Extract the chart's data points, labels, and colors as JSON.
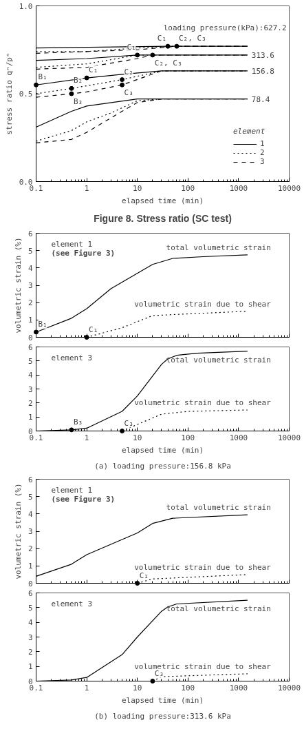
{
  "chart_data": [
    {
      "type": "line",
      "title": "Figure 8. Stress ratio (SC test)",
      "xlabel": "elapsed time (min)",
      "ylabel": "stress ratio qⁿ/pⁿ",
      "legend_title": "element",
      "legend": "bottom right",
      "log": "x",
      "xlim": [
        0.1,
        10000
      ],
      "xticks": [
        0.1,
        1,
        10,
        100,
        1000,
        10000
      ],
      "ylim": [
        0,
        1.0
      ],
      "yticks": [
        {
          "value": 0,
          "label": "0.0"
        },
        {
          "value": 0.5,
          "label": "0.5"
        },
        {
          "value": 1.0,
          "label": "1.0"
        }
      ],
      "series": [
        {
          "name": "1",
          "color": "#000000",
          "line_style": "solid",
          "x": [
            0.1,
            40,
            1500
          ],
          "values": [
            0.76,
            0.77,
            0.77
          ]
        },
        {
          "name": "2",
          "color": "#000000",
          "line_style": "dotted",
          "x": [
            0.1,
            1,
            10,
            60,
            1500
          ],
          "values": [
            0.74,
            0.74,
            0.76,
            0.77,
            0.77
          ]
        },
        {
          "name": "3",
          "color": "#000000",
          "line_style": "dashed",
          "x": [
            0.1,
            1,
            10,
            60,
            1500
          ],
          "values": [
            0.73,
            0.74,
            0.75,
            0.77,
            0.77
          ]
        },
        {
          "color": "#000000",
          "line_style": "solid",
          "x": [
            0.1,
            1,
            10,
            1500
          ],
          "values": [
            0.69,
            0.7,
            0.72,
            0.72
          ]
        },
        {
          "color": "#000000",
          "line_style": "dotted",
          "x": [
            0.1,
            1,
            10,
            20,
            1500
          ],
          "values": [
            0.65,
            0.67,
            0.72,
            0.72,
            0.72
          ]
        },
        {
          "color": "#000000",
          "line_style": "dashed",
          "x": [
            0.1,
            1,
            10,
            20,
            1500
          ],
          "values": [
            0.64,
            0.65,
            0.7,
            0.72,
            0.72
          ]
        },
        {
          "color": "#000000",
          "line_style": "solid",
          "x": [
            0.1,
            1,
            5,
            30,
            1500
          ],
          "values": [
            0.55,
            0.59,
            0.61,
            0.63,
            0.63
          ]
        },
        {
          "color": "#000000",
          "line_style": "dotted",
          "x": [
            0.1,
            0.5,
            5,
            30,
            1500
          ],
          "values": [
            0.5,
            0.53,
            0.58,
            0.63,
            0.63
          ]
        },
        {
          "color": "#000000",
          "line_style": "dashed",
          "x": [
            0.1,
            0.5,
            1,
            5,
            30,
            1500
          ],
          "values": [
            0.48,
            0.5,
            0.51,
            0.55,
            0.63,
            0.63
          ]
        },
        {
          "color": "#000000",
          "line_style": "solid",
          "x": [
            0.1,
            0.5,
            1,
            10,
            30,
            1500
          ],
          "values": [
            0.31,
            0.4,
            0.43,
            0.47,
            0.47,
            0.47
          ]
        },
        {
          "color": "#000000",
          "line_style": "dotted",
          "x": [
            0.1,
            0.5,
            1,
            3,
            10,
            30,
            1500
          ],
          "values": [
            0.23,
            0.29,
            0.34,
            0.39,
            0.46,
            0.47,
            0.47
          ]
        },
        {
          "color": "#000000",
          "line_style": "dashed",
          "x": [
            0.1,
            0.5,
            1,
            5,
            10,
            30,
            1500
          ],
          "values": [
            0.22,
            0.24,
            0.28,
            0.4,
            0.45,
            0.47,
            0.47
          ]
        },
        {
          "type": "scatter",
          "marker": "circle",
          "color": "#000000",
          "x": [
            40,
            60,
            10,
            20,
            0.1,
            0.5,
            0.5,
            1,
            5,
            5
          ],
          "values": [
            0.77,
            0.77,
            0.72,
            0.72,
            0.55,
            0.53,
            0.5,
            0.59,
            0.58,
            0.55
          ]
        }
      ],
      "annotations": [
        {
          "text": "loading pressure(kPa):627.2",
          "x": 1500,
          "y": 0.77
        },
        {
          "text": "C₁",
          "x": 40,
          "y": 0.77
        },
        {
          "text": "C₂, C₃",
          "x": 60,
          "y": 0.77
        },
        {
          "text": "313.6",
          "x": 1500,
          "y": 0.72
        },
        {
          "text": "C₁",
          "x": 10,
          "y": 0.72
        },
        {
          "text": "C₂, C₃",
          "x": 20,
          "y": 0.72
        },
        {
          "text": "156.8",
          "x": 1500,
          "y": 0.63
        },
        {
          "text": "B₁",
          "x": 0.1,
          "y": 0.55
        },
        {
          "text": "B₂",
          "x": 0.5,
          "y": 0.53
        },
        {
          "text": "C₁",
          "x": 1,
          "y": 0.59
        },
        {
          "text": "C₂",
          "x": 5,
          "y": 0.58
        },
        {
          "text": "B₃",
          "x": 0.5,
          "y": 0.5
        },
        {
          "text": "C₃",
          "x": 5,
          "y": 0.55
        },
        {
          "text": "78.4",
          "x": 1500,
          "y": 0.47
        }
      ]
    },
    {
      "type": "line",
      "ylabel": "volumetric strain (%)",
      "log": "x",
      "tick_labels": "y",
      "xlim": [
        0.1,
        10000
      ],
      "xticks": [
        0.1,
        1,
        10,
        100,
        1000,
        10000
      ],
      "ylim": [
        0,
        6
      ],
      "yticks": [
        0,
        1,
        2,
        3,
        4,
        5,
        6
      ],
      "series": [
        {
          "name": "total volumetric strain",
          "color": "#000000",
          "line_style": "solid",
          "x": [
            0.1,
            0.5,
            1,
            3,
            20,
            50,
            200,
            1500
          ],
          "values": [
            0.3,
            1.1,
            1.65,
            2.8,
            4.2,
            4.55,
            4.65,
            4.75
          ]
        },
        {
          "name": "volumetric strain due to shear",
          "color": "#000000",
          "line_style": "dotted",
          "x": [
            1,
            5,
            20,
            100,
            1500
          ],
          "values": [
            0,
            0.55,
            1.25,
            1.35,
            1.5
          ]
        },
        {
          "type": "scatter",
          "marker": "circle",
          "color": "#000000",
          "x": [
            0.1,
            1
          ],
          "values": [
            0.3,
            0
          ]
        }
      ],
      "annotations": [
        "element 1",
        "(see Figure 3)",
        {
          "text": "B₁",
          "x": 0.1,
          "y": 0.3
        },
        {
          "text": "C₁",
          "x": 1,
          "y": 0
        }
      ]
    },
    {
      "type": "line",
      "title": "(a) loading pressure:156.8 kPa",
      "xlabel": "elapsed time (min)",
      "log": "x",
      "xlim": [
        0.1,
        10000
      ],
      "xticks": [
        0.1,
        1,
        10,
        100,
        1000,
        10000
      ],
      "ylim": [
        0,
        6
      ],
      "yticks": [
        0,
        1,
        2,
        3,
        4,
        5,
        6
      ],
      "series": [
        {
          "name": "total volumetric strain",
          "color": "#000000",
          "line_style": "solid",
          "x": [
            0.1,
            0.5,
            1,
            5,
            10,
            30,
            40,
            60,
            150,
            1500
          ],
          "values": [
            0,
            0.08,
            0.2,
            1.4,
            2.5,
            4.75,
            5.15,
            5.4,
            5.55,
            5.7
          ]
        },
        {
          "name": "volumetric strain due to shear",
          "color": "#000000",
          "line_style": "dotted",
          "x": [
            5,
            30,
            100,
            1500
          ],
          "values": [
            0,
            1.2,
            1.4,
            1.5
          ]
        },
        {
          "type": "scatter",
          "marker": "circle",
          "color": "#000000",
          "x": [
            0.5,
            5
          ],
          "values": [
            0.08,
            0
          ]
        }
      ],
      "annotations": [
        "element 3",
        {
          "text": "B₃",
          "x": 0.5,
          "y": 0.08
        },
        {
          "text": "C₃",
          "x": 5,
          "y": 0
        }
      ]
    },
    {
      "type": "line",
      "ylabel": "volumetric strain (%)",
      "log": "x",
      "tick_labels": "y",
      "xlim": [
        0.1,
        10000
      ],
      "xticks": [
        0.1,
        1,
        10,
        100,
        1000,
        10000
      ],
      "ylim": [
        0,
        6
      ],
      "yticks": [
        0,
        1,
        2,
        3,
        4,
        5,
        6
      ],
      "series": [
        {
          "name": "total volumetric strain",
          "color": "#000000",
          "line_style": "solid",
          "x": [
            0.1,
            0.5,
            1,
            10,
            20,
            50,
            1500
          ],
          "values": [
            0.4,
            1.1,
            1.65,
            2.9,
            3.45,
            3.75,
            3.95
          ]
        },
        {
          "name": "volumetric strain due to shear",
          "color": "#000000",
          "line_style": "dotted",
          "x": [
            10,
            20,
            1500
          ],
          "values": [
            0,
            0.25,
            0.5
          ]
        },
        {
          "type": "scatter",
          "marker": "circle",
          "color": "#000000",
          "x": [
            10
          ],
          "values": [
            0
          ]
        }
      ],
      "annotations": [
        "element 1",
        "(see Figure 3)",
        {
          "text": "C₁",
          "x": 10,
          "y": 0
        }
      ]
    },
    {
      "type": "line",
      "title": "(b) loading pressure:313.6 kPa",
      "xlabel": "elapsed time (min)",
      "log": "x",
      "xlim": [
        0.1,
        10000
      ],
      "xticks": [
        0.1,
        1,
        10,
        100,
        1000,
        10000
      ],
      "ylim": [
        0,
        6
      ],
      "yticks": [
        0,
        1,
        2,
        3,
        4,
        5,
        6
      ],
      "series": [
        {
          "name": "total volumetric strain",
          "color": "#000000",
          "line_style": "solid",
          "x": [
            0.1,
            0.5,
            1,
            5,
            10,
            30,
            40,
            60,
            1500
          ],
          "values": [
            0,
            0.08,
            0.25,
            1.8,
            3,
            4.75,
            5.05,
            5.25,
            5.5
          ]
        },
        {
          "name": "volumetric strain due to shear",
          "color": "#000000",
          "line_style": "dotted",
          "x": [
            20,
            30,
            1500
          ],
          "values": [
            0,
            0.3,
            0.5
          ]
        },
        {
          "type": "scatter",
          "marker": "circle",
          "color": "#000000",
          "x": [
            20
          ],
          "values": [
            0
          ]
        }
      ],
      "annotations": [
        "element 3",
        {
          "text": "C₃",
          "x": 20,
          "y": 0
        }
      ]
    }
  ]
}
